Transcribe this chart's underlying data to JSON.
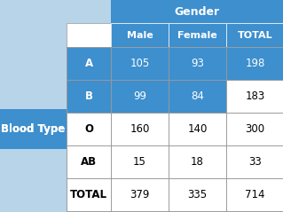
{
  "title": "Gender",
  "row_header": "Blood Type",
  "col_labels": [
    "Male",
    "Female",
    "TOTAL"
  ],
  "row_labels": [
    "A",
    "B",
    "O",
    "AB",
    "TOTAL"
  ],
  "data": [
    [
      105,
      93,
      198
    ],
    [
      99,
      84,
      183
    ],
    [
      160,
      140,
      300
    ],
    [
      15,
      18,
      33
    ],
    [
      379,
      335,
      714
    ]
  ],
  "blue": "#3d8fce",
  "light_blue_bg": "#b8d4e8",
  "white": "#ffffff",
  "grid_line": "#999999",
  "row_label_highlight": [
    true,
    true,
    false,
    false,
    false
  ],
  "cell_highlight": [
    [
      true,
      true,
      true
    ],
    [
      true,
      true,
      false
    ],
    [
      false,
      false,
      false
    ],
    [
      false,
      false,
      false
    ],
    [
      false,
      false,
      false
    ]
  ],
  "row1_total_highlight": [
    true,
    false,
    false,
    false,
    false
  ]
}
